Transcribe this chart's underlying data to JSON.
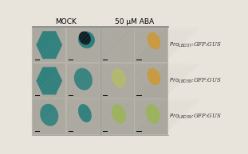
{
  "title_mock": "MOCK",
  "title_aba": "50 μM ABA",
  "row_labels": [
    "$Pro_{LBD37}$:GFP:GUS",
    "$Pro_{LBD38}$:GFP:GUS",
    "$Pro_{LBD39}$:GFP:GUS"
  ],
  "n_cols": 4,
  "n_rows": 3,
  "figure_bg": "#e8e4dc",
  "header_fontsize": 6.5,
  "label_fontsize": 5.0,
  "panel_bg_colors": [
    [
      "#b8b4a8",
      "#b0aca0",
      "#b4b0a4",
      "#b0aca0"
    ],
    [
      "#b4b0a4",
      "#b0aca0",
      "#b4b0a4",
      "#b0aca0"
    ],
    [
      "#b0aca0",
      "#b4b0a4",
      "#b0aca0",
      "#b4b0a4"
    ]
  ],
  "stain_colors_mock": [
    "#1a7878",
    "#0a0a18",
    "#1a8080",
    "#206868"
  ],
  "stain_colors_aba": [
    "#c8c870",
    "#d4a030",
    "#a8b860",
    "#90b040"
  ],
  "scale_bar_color": "#000000"
}
